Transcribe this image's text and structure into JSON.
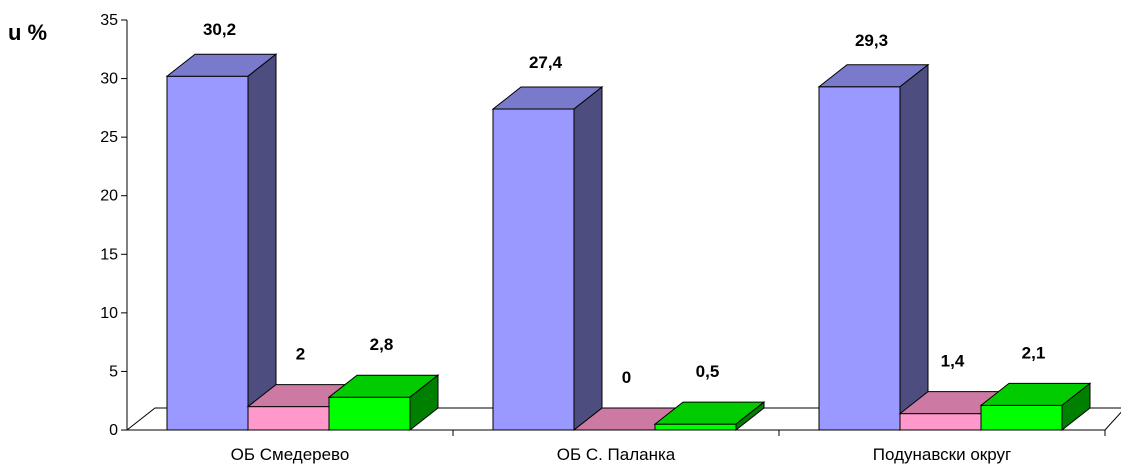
{
  "chart_data": {
    "type": "bar",
    "ylabel": "u %",
    "ylim": [
      0,
      35
    ],
    "yticks": [
      0,
      5,
      10,
      15,
      20,
      25,
      30,
      35
    ],
    "categories": [
      "ОБ Смедерево",
      "ОБ С. Паланка",
      "Подунавски округ"
    ],
    "series": [
      {
        "values": [
          30.2,
          27.4,
          29.3
        ],
        "labels": [
          "30,2",
          "27,4",
          "29,3"
        ],
        "color": "#9999ff",
        "side_color": "#4d4d80",
        "top_color": "#7a7acc"
      },
      {
        "values": [
          2,
          0,
          1.4
        ],
        "labels": [
          "2",
          "0",
          "1,4"
        ],
        "color": "#ff99cc",
        "side_color": "#804d66",
        "top_color": "#cc7aa3"
      },
      {
        "values": [
          2.8,
          0.5,
          2.1
        ],
        "labels": [
          "2,8",
          "0,5",
          "2,1"
        ],
        "color": "#00ff00",
        "side_color": "#008000",
        "top_color": "#00cc00"
      }
    ],
    "grid": false,
    "legend": "none",
    "style": "3d"
  }
}
